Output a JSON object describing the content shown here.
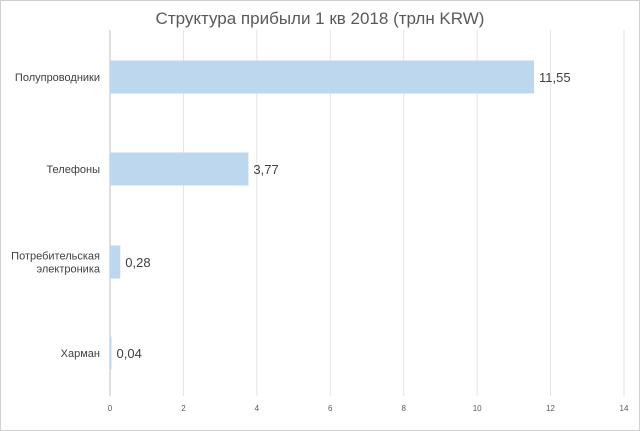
{
  "chart_data": {
    "type": "bar",
    "orientation": "horizontal",
    "title": "Структура прибыли 1 кв 2018 (трлн KRW)",
    "categories": [
      [
        "Полупроводники"
      ],
      [
        "Телефоны"
      ],
      [
        "Потребительская",
        "электроника"
      ],
      [
        "Харман"
      ]
    ],
    "values": [
      11.55,
      3.77,
      0.28,
      0.04
    ],
    "data_labels": [
      "11,55",
      "3,77",
      "0,28",
      "0,04"
    ],
    "x_ticks": [
      "0",
      "2",
      "4",
      "6",
      "8",
      "10",
      "12",
      "14"
    ],
    "xlim": [
      0,
      14
    ],
    "grid": "vertical gridlines",
    "legend": "none",
    "colors": {
      "bar": "#bdd7ee",
      "grid": "#e3e3e3",
      "axis": "#bfbfbf",
      "text": "#404040",
      "title": "#595959"
    }
  }
}
